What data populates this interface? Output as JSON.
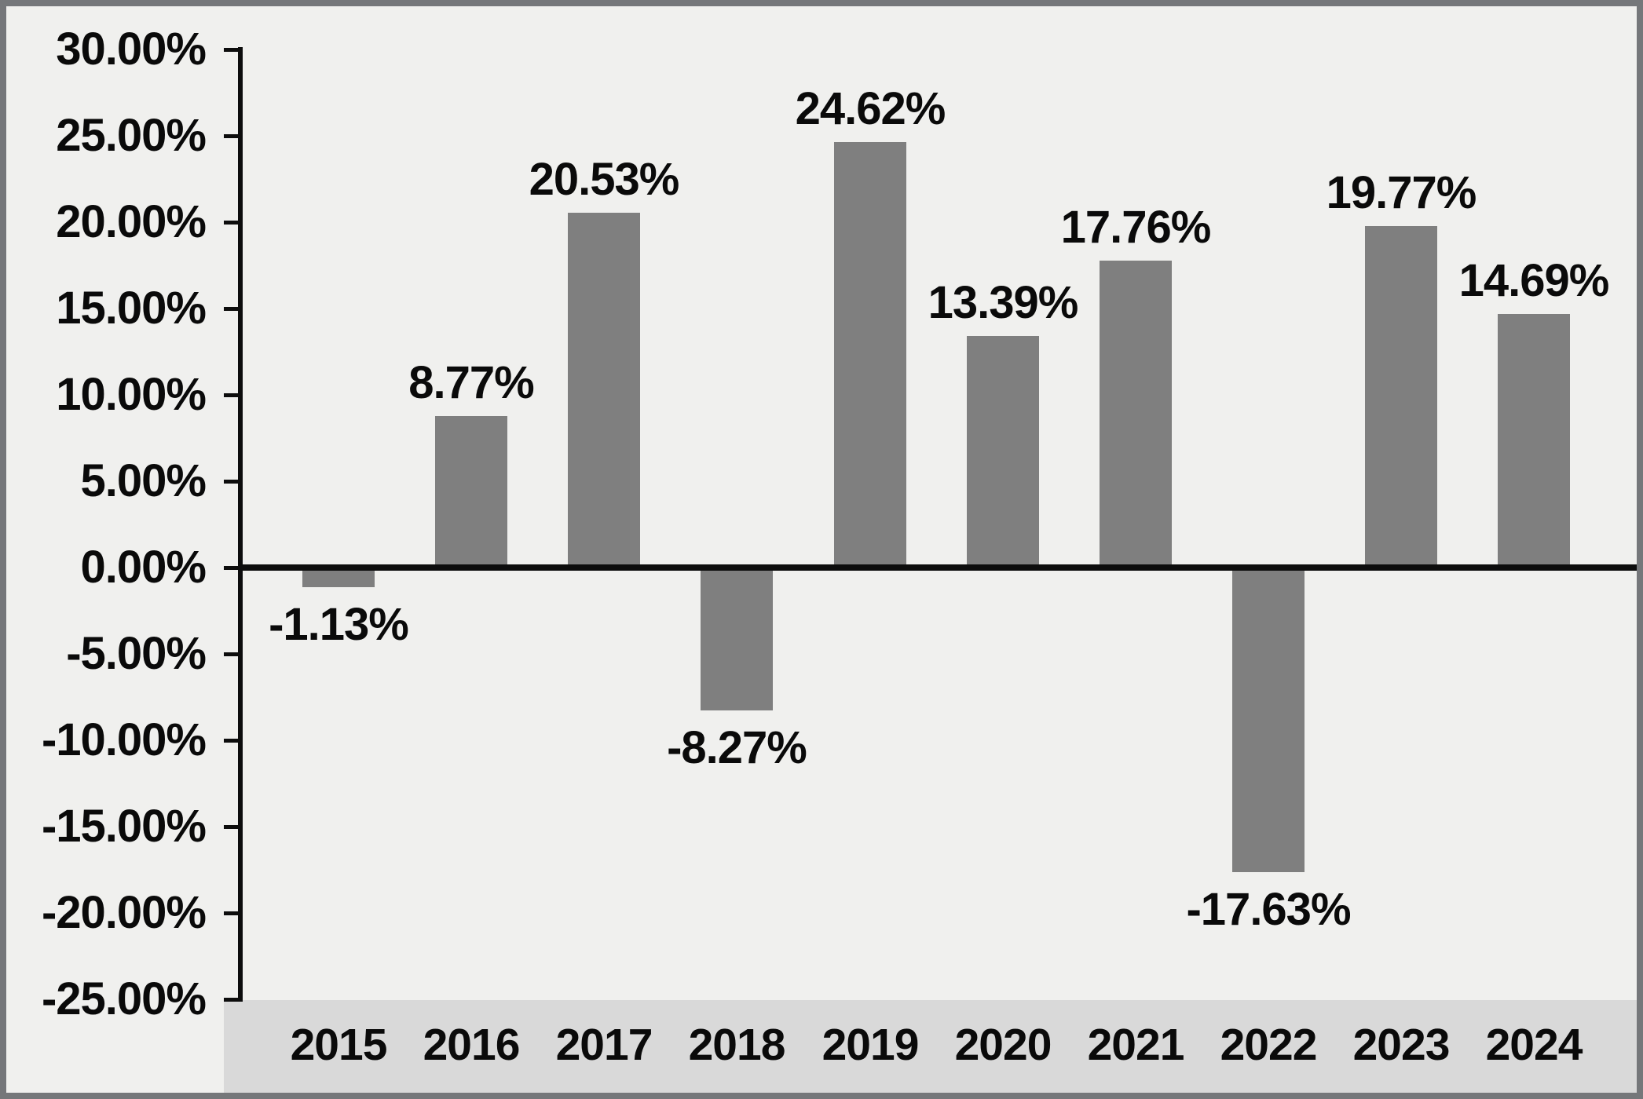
{
  "chart_data": {
    "type": "bar",
    "title": "",
    "xlabel": "",
    "ylabel": "",
    "categories": [
      "2015",
      "2016",
      "2017",
      "2018",
      "2019",
      "2020",
      "2021",
      "2022",
      "2023",
      "2024"
    ],
    "values": [
      -1.13,
      8.77,
      20.53,
      -8.27,
      24.62,
      13.39,
      17.76,
      -17.63,
      19.77,
      14.69
    ],
    "value_labels": [
      "-1.13%",
      "8.77%",
      "20.53%",
      "-8.27%",
      "24.62%",
      "13.39%",
      "17.76%",
      "-17.63%",
      "19.77%",
      "14.69%"
    ],
    "ylim": [
      -25,
      30
    ],
    "y_tick_interval": 5,
    "y_tick_labels": [
      "30.00%",
      "25.00%",
      "20.00%",
      "15.00%",
      "10.00%",
      "5.00%",
      "0.00%",
      "-5.00%",
      "-10.00%",
      "-15.00%",
      "-20.00%",
      "-25.00%"
    ],
    "grid": false,
    "legend": false,
    "colors": {
      "bar": "#7f7f7f",
      "plot_background": "#f0f0ee",
      "x_band_background": "#d9d9d9",
      "axis": "#0d0d0d",
      "label_text": "#0a0a0a",
      "outer_border": "#75777a"
    }
  }
}
